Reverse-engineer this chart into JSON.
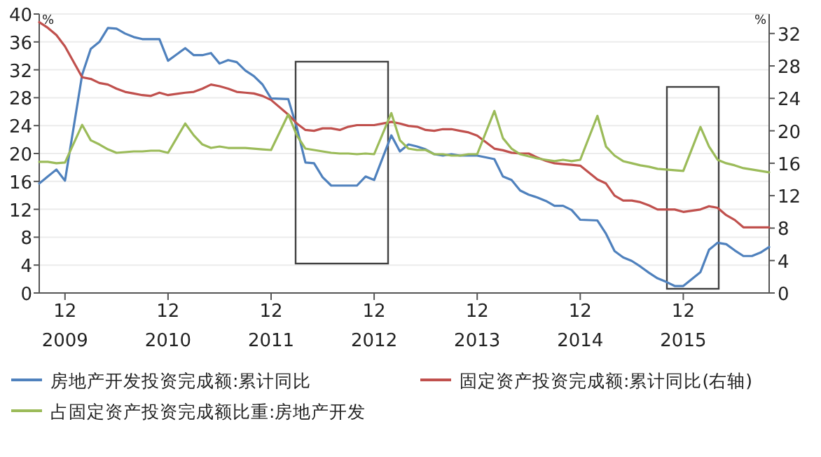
{
  "chart_data": {
    "type": "line",
    "x": [
      "2009-09",
      "2009-10",
      "2009-11",
      "2009-12",
      "2010-02",
      "2010-03",
      "2010-04",
      "2010-05",
      "2010-06",
      "2010-07",
      "2010-08",
      "2010-09",
      "2010-10",
      "2010-11",
      "2010-12",
      "2011-02",
      "2011-03",
      "2011-04",
      "2011-05",
      "2011-06",
      "2011-07",
      "2011-08",
      "2011-09",
      "2011-10",
      "2011-11",
      "2011-12",
      "2012-02",
      "2012-03",
      "2012-04",
      "2012-05",
      "2012-06",
      "2012-07",
      "2012-08",
      "2012-09",
      "2012-10",
      "2012-11",
      "2012-12",
      "2013-02",
      "2013-03",
      "2013-04",
      "2013-05",
      "2013-06",
      "2013-07",
      "2013-08",
      "2013-09",
      "2013-10",
      "2013-11",
      "2013-12",
      "2014-02",
      "2014-03",
      "2014-04",
      "2014-05",
      "2014-06",
      "2014-07",
      "2014-08",
      "2014-09",
      "2014-10",
      "2014-11",
      "2014-12",
      "2015-02",
      "2015-03",
      "2015-04",
      "2015-05",
      "2015-06",
      "2015-07",
      "2015-08",
      "2015-09",
      "2015-10",
      "2015-11",
      "2015-12",
      "2016-02",
      "2016-03",
      "2016-04",
      "2016-05",
      "2016-06",
      "2016-07",
      "2016-08",
      "2016-09",
      "2016-10"
    ],
    "series": [
      {
        "name": "房地产开发投资完成额:累计同比",
        "color": "#4f81bd",
        "values": [
          15.7,
          16.7,
          17.7,
          16.1,
          31.3,
          35.0,
          36.0,
          38.0,
          37.9,
          37.2,
          36.7,
          36.4,
          36.4,
          36.4,
          33.3,
          35.1,
          34.1,
          34.1,
          34.4,
          32.9,
          33.4,
          33.1,
          31.9,
          31.1,
          29.9,
          27.9,
          27.8,
          23.7,
          18.7,
          18.6,
          16.6,
          15.4,
          15.4,
          15.4,
          15.4,
          16.7,
          16.2,
          22.6,
          20.3,
          21.3,
          21.0,
          20.6,
          19.9,
          19.7,
          19.9,
          19.7,
          19.7,
          19.7,
          19.2,
          16.7,
          16.2,
          14.7,
          14.1,
          13.7,
          13.2,
          12.5,
          12.5,
          11.9,
          10.5,
          10.4,
          8.5,
          6.0,
          5.1,
          4.6,
          3.8,
          2.9,
          2.1,
          1.6,
          1.0,
          1.0,
          3.0,
          6.2,
          7.2,
          7.0,
          6.1,
          5.3,
          5.3,
          5.8,
          6.6
        ]
      },
      {
        "name": "固定资产投资完成额:累计同比(右轴)",
        "color": "#c0504d",
        "axis": "y2",
        "values": [
          33.4,
          32.7,
          31.8,
          30.4,
          26.6,
          26.4,
          25.9,
          25.7,
          25.2,
          24.8,
          24.6,
          24.4,
          24.3,
          24.7,
          24.4,
          24.7,
          24.8,
          25.2,
          25.7,
          25.5,
          25.2,
          24.8,
          24.7,
          24.6,
          24.3,
          23.8,
          22.0,
          20.9,
          20.1,
          20.0,
          20.3,
          20.3,
          20.1,
          20.5,
          20.7,
          20.7,
          20.7,
          21.1,
          20.9,
          20.6,
          20.5,
          20.1,
          20.0,
          20.2,
          20.2,
          20.0,
          19.8,
          19.4,
          17.8,
          17.6,
          17.3,
          17.2,
          17.2,
          16.7,
          16.3,
          16.0,
          15.9,
          15.8,
          15.7,
          14.0,
          13.5,
          12.0,
          11.4,
          11.4,
          11.2,
          10.8,
          10.3,
          10.3,
          10.3,
          10.0,
          10.3,
          10.7,
          10.5,
          9.6,
          9.0,
          8.1,
          8.1,
          8.1,
          8.1
        ]
      },
      {
        "name": "占固定资产投资完成额比重:房地产开发",
        "color": "#9bbb59",
        "values": [
          18.8,
          18.8,
          18.6,
          18.7,
          24.1,
          21.9,
          21.3,
          20.6,
          20.1,
          20.2,
          20.3,
          20.3,
          20.4,
          20.4,
          20.1,
          24.3,
          22.6,
          21.3,
          20.8,
          21.0,
          20.8,
          20.8,
          20.8,
          20.7,
          20.6,
          20.5,
          25.6,
          22.6,
          20.7,
          20.5,
          20.3,
          20.1,
          20.0,
          20.0,
          19.9,
          20.0,
          19.9,
          25.8,
          21.9,
          20.7,
          20.5,
          20.5,
          19.9,
          19.9,
          19.7,
          19.7,
          19.9,
          19.9,
          26.1,
          22.2,
          20.7,
          19.9,
          19.6,
          19.3,
          19.1,
          18.9,
          19.1,
          18.9,
          19.1,
          25.4,
          21.0,
          19.7,
          18.9,
          18.6,
          18.3,
          18.1,
          17.8,
          17.7,
          17.6,
          17.5,
          23.8,
          21.0,
          19.1,
          18.6,
          18.3,
          17.9,
          17.7,
          17.5,
          17.3
        ]
      }
    ],
    "ylabel": "%",
    "y2label": "%",
    "xlim": [
      "2009-09",
      "2016-10"
    ],
    "xticks": [
      {
        "value": "2009-12",
        "label": "12\n2009"
      },
      {
        "value": "2010-12",
        "label": "12\n2010"
      },
      {
        "value": "2011-12",
        "label": "12\n2011"
      },
      {
        "value": "2012-12",
        "label": "12\n2012"
      },
      {
        "value": "2013-12",
        "label": "12\n2013"
      },
      {
        "value": "2014-12",
        "label": "12\n2014"
      },
      {
        "value": "2015-12",
        "label": "12\n2015"
      }
    ],
    "ylim": [
      0,
      40
    ],
    "yticks": [
      0,
      4,
      8,
      12,
      16,
      20,
      24,
      28,
      32,
      36,
      40
    ],
    "y2lim": [
      0,
      34.4
    ],
    "y2ticks": [
      0,
      4,
      8,
      12,
      16,
      20,
      24,
      28,
      32
    ],
    "grid": "y",
    "legend": "bottom",
    "marker": "none",
    "line_style": "solid"
  }
}
